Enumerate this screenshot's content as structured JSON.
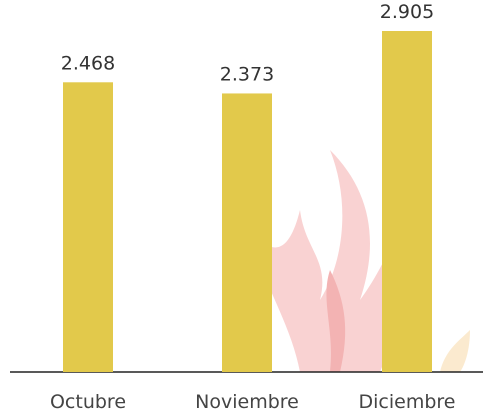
{
  "chart_data": {
    "type": "bar",
    "categories": [
      "Octubre",
      "Noviembre",
      "Diciembre"
    ],
    "values": [
      2.468,
      2.373,
      2.905
    ],
    "color": "#e2c94b"
  }
}
